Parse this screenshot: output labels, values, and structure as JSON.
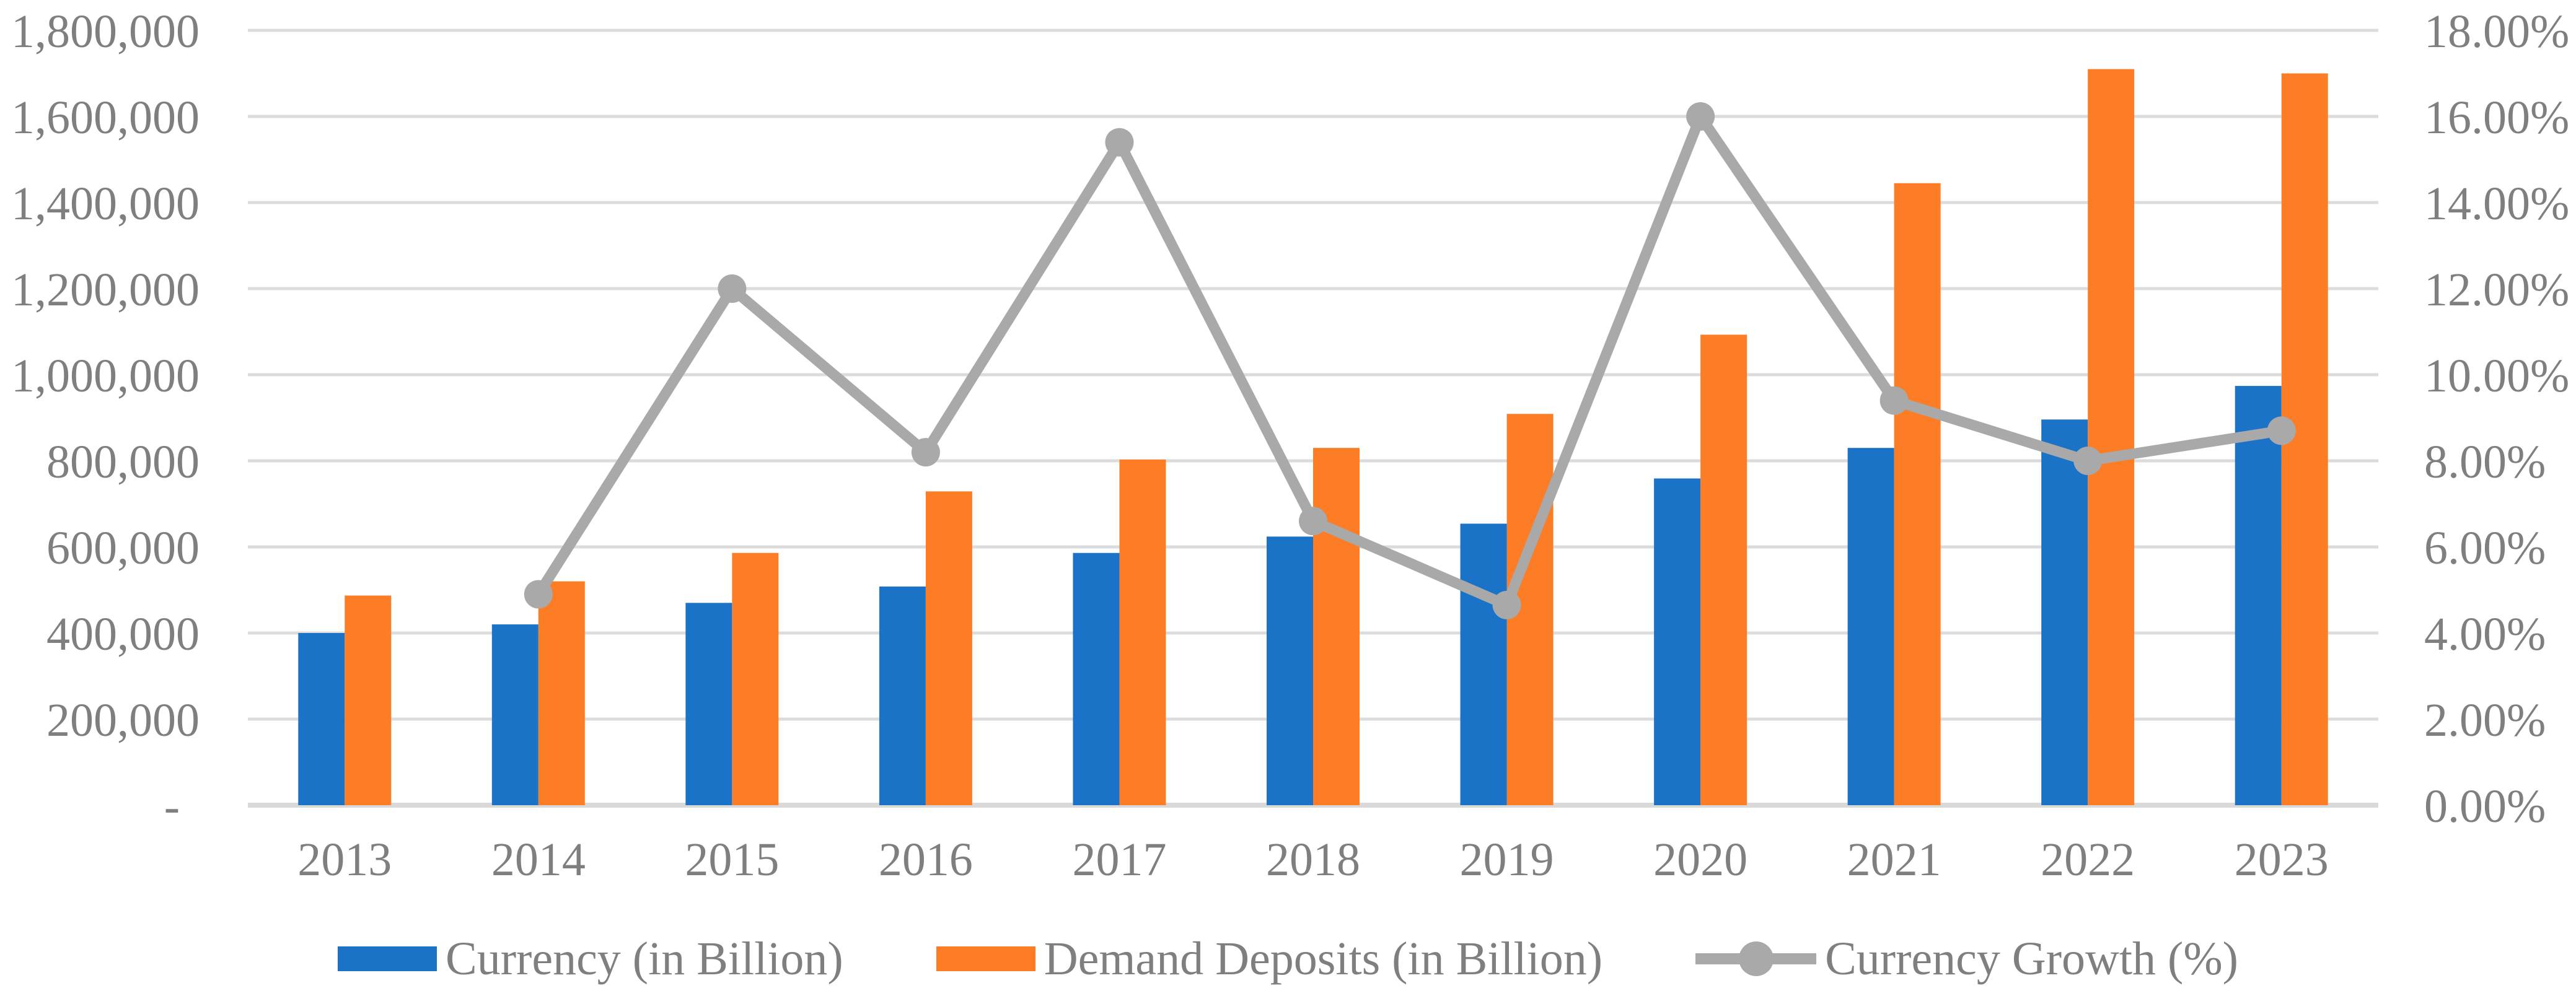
{
  "chart_data": {
    "type": "combo-bar-line",
    "title": "",
    "categories": [
      "2013",
      "2014",
      "2015",
      "2016",
      "2017",
      "2018",
      "2019",
      "2020",
      "2021",
      "2022",
      "2023"
    ],
    "series": [
      {
        "name": "Currency (in Billion)",
        "type": "bar",
        "axis": "left",
        "color": "#1B73C8",
        "values": [
          400000,
          420000,
          470000,
          508000,
          586000,
          624000,
          654000,
          759000,
          830000,
          896000,
          974000
        ]
      },
      {
        "name": "Demand Deposits (in Billion)",
        "type": "bar",
        "axis": "left",
        "color": "#FC7D26",
        "values": [
          487000,
          520000,
          586000,
          729000,
          803000,
          830000,
          909000,
          1093000,
          1445000,
          1710000,
          1700000
        ]
      },
      {
        "name": "Currency Growth (%)",
        "type": "line",
        "axis": "right",
        "color": "#A9A9A9",
        "values": [
          null,
          4.9,
          12.0,
          8.2,
          15.4,
          6.6,
          4.65,
          16.0,
          9.4,
          8.0,
          8.7
        ]
      }
    ],
    "left_axis": {
      "min": 0,
      "max": 1800000,
      "step": 200000,
      "tick_labels": [
        "1,800,000",
        "1,600,000",
        "1,400,000",
        "1,200,000",
        "1,000,000",
        "800,000",
        "600,000",
        "400,000",
        "200,000",
        "-"
      ]
    },
    "right_axis": {
      "min": 0,
      "max": 18,
      "step": 2,
      "tick_labels": [
        "18.00%",
        "16.00%",
        "14.00%",
        "12.00%",
        "10.00%",
        "8.00%",
        "6.00%",
        "4.00%",
        "2.00%",
        "0.00%"
      ]
    },
    "grid": true,
    "legend_position": "bottom"
  },
  "colors": {
    "text": "#7F7F7F",
    "gridline": "#DCDCDC",
    "axis_line": "#D9D9D9",
    "background": "#FFFFFF"
  }
}
